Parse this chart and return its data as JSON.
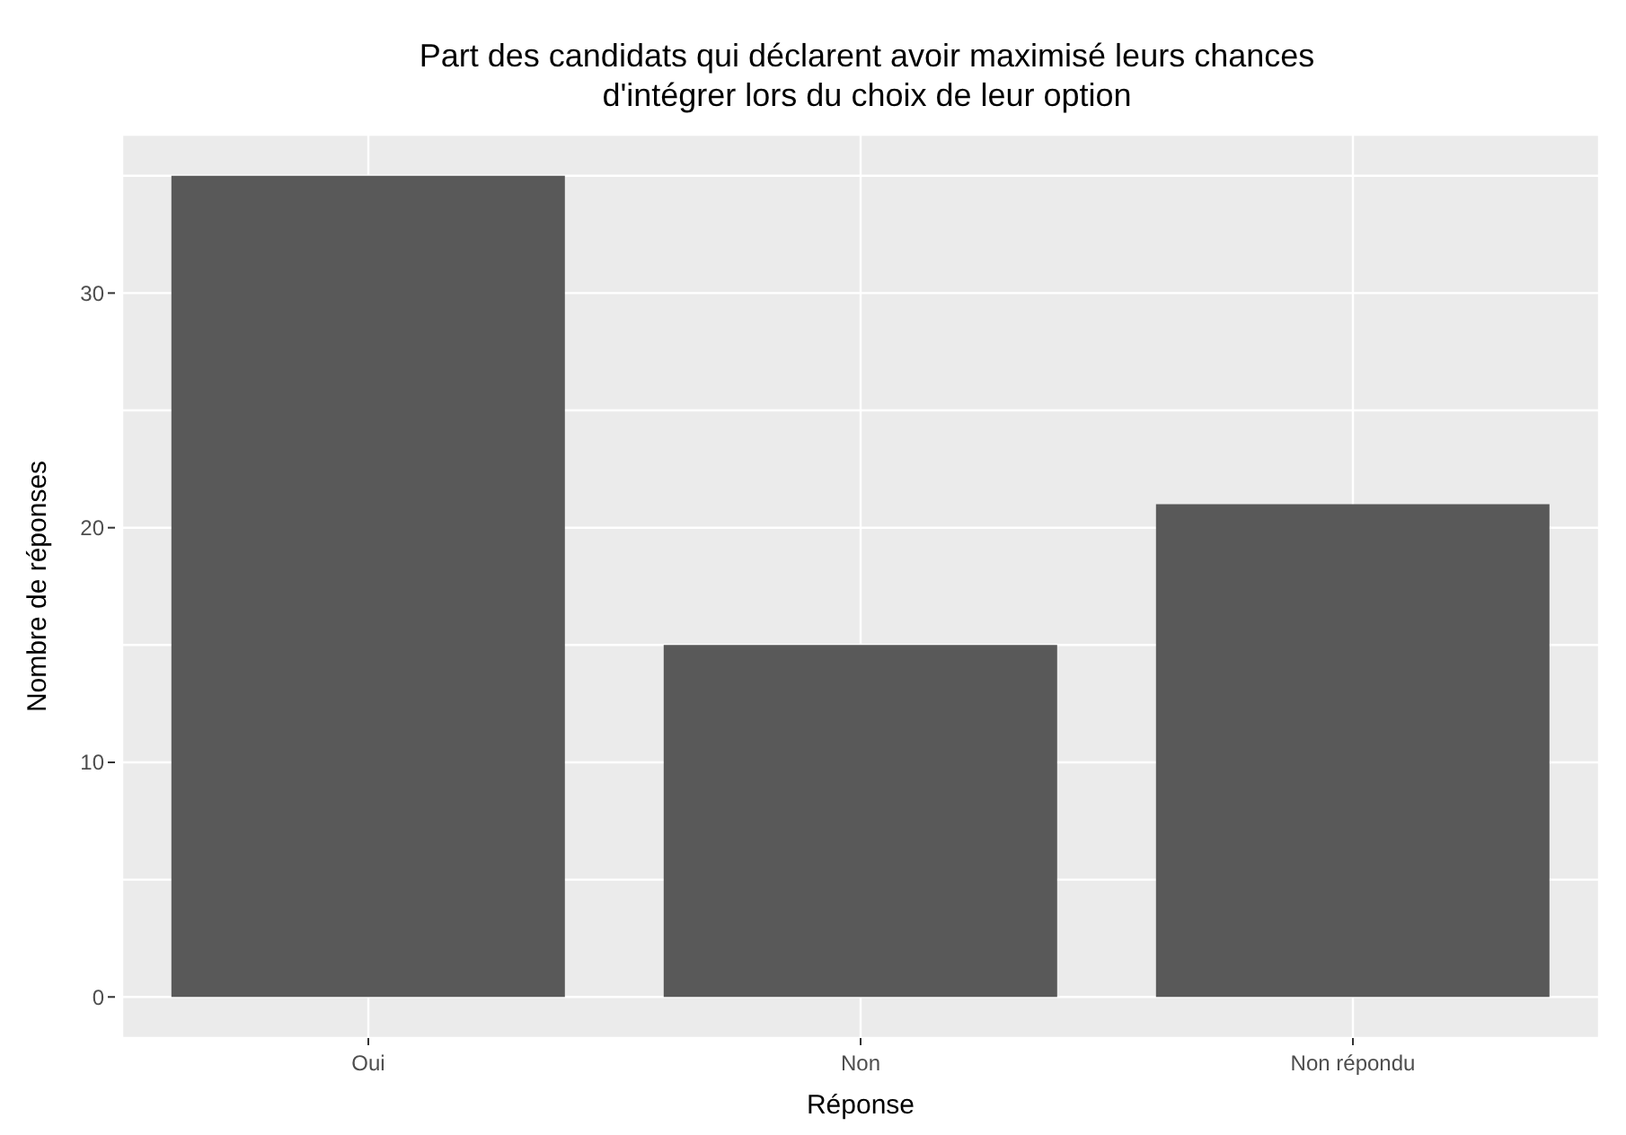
{
  "chart_data": {
    "type": "bar",
    "title": "Part des candidats qui déclarent avoir maximisé leurs chances\nd'intégrer lors du choix de leur option",
    "xlabel": "Réponse",
    "ylabel": "Nombre de réponses",
    "categories": [
      "Oui",
      "Non",
      "Non répondu"
    ],
    "values": [
      35,
      15,
      21
    ],
    "color": "#595959",
    "ylim": [
      -1.75,
      36.75
    ],
    "yticks": [
      0,
      {
        "value": 5,
        "label": null
      },
      10,
      {
        "value": 15,
        "label": null
      },
      20,
      {
        "value": 25,
        "label": null
      },
      30,
      {
        "value": 35,
        "label": null
      }
    ],
    "grid": true
  }
}
